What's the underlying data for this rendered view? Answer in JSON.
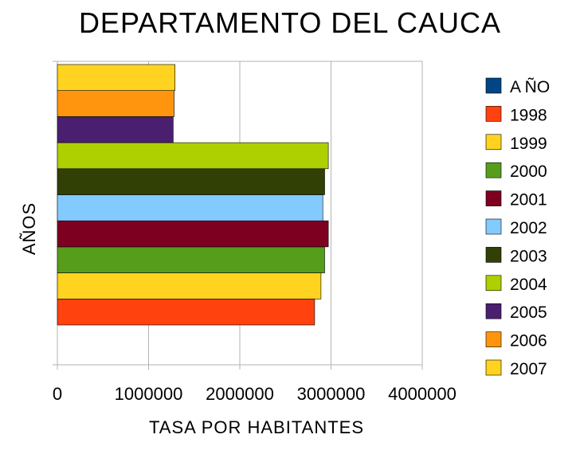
{
  "chart_data": {
    "type": "bar",
    "orientation": "horizontal",
    "title": "DEPARTAMENTO DEL CAUCA",
    "xlabel": "TASA POR HABITANTES",
    "ylabel": "AÑOS",
    "xlim": [
      0,
      4000000
    ],
    "x_ticks": [
      "0",
      "1000000",
      "2000000",
      "3000000",
      "4000000"
    ],
    "grid": true,
    "legend_position": "right",
    "legend": [
      {
        "name": "A ÑO",
        "color": "#004586"
      },
      {
        "name": "1998",
        "color": "#ff420e"
      },
      {
        "name": "1999",
        "color": "#ffd320"
      },
      {
        "name": "2000",
        "color": "#579d1c"
      },
      {
        "name": "2001",
        "color": "#7e0021"
      },
      {
        "name": "2002",
        "color": "#83caff"
      },
      {
        "name": "2003",
        "color": "#314004"
      },
      {
        "name": "2004",
        "color": "#aecf00"
      },
      {
        "name": "2005",
        "color": "#4b1f6f"
      },
      {
        "name": "2006",
        "color": "#ff950e"
      },
      {
        "name": "2007",
        "color": "#ffd320"
      }
    ],
    "series": [
      {
        "name": "1998",
        "value": 2820000,
        "color": "#ff420e"
      },
      {
        "name": "1999",
        "value": 2890000,
        "color": "#ffd320"
      },
      {
        "name": "2000",
        "value": 2930000,
        "color": "#579d1c"
      },
      {
        "name": "2001",
        "value": 2970000,
        "color": "#7e0021"
      },
      {
        "name": "2002",
        "value": 2910000,
        "color": "#83caff"
      },
      {
        "name": "2003",
        "value": 2930000,
        "color": "#314004"
      },
      {
        "name": "2004",
        "value": 2970000,
        "color": "#aecf00"
      },
      {
        "name": "2005",
        "value": 1270000,
        "color": "#4b1f6f"
      },
      {
        "name": "2006",
        "value": 1280000,
        "color": "#ff950e"
      },
      {
        "name": "2007",
        "value": 1290000,
        "color": "#ffd320"
      }
    ]
  }
}
